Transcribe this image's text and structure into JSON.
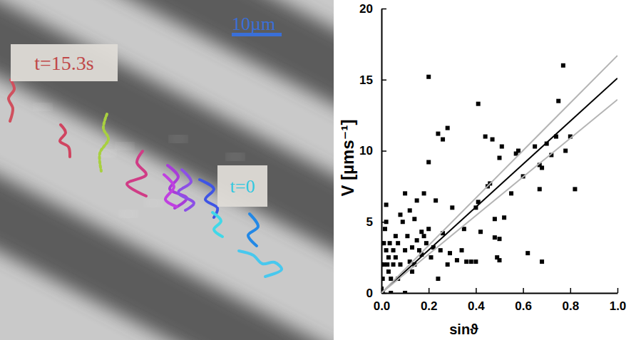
{
  "image": {
    "time_labels": [
      "t=15.3s",
      "t=0"
    ],
    "scale_bar": "10µm"
  },
  "chart_data": {
    "type": "scatter",
    "x_label": "sinϑ",
    "y_label": "V [µms⁻¹]",
    "xlim": [
      0,
      1
    ],
    "ylim": [
      0,
      20
    ],
    "xticks": [
      {
        "value": 0,
        "label": "0.0"
      },
      {
        "value": 0.2,
        "label": "0.2"
      },
      {
        "value": 0.4,
        "label": "0.4"
      },
      {
        "value": 0.6,
        "label": "0.6"
      },
      {
        "value": 0.8,
        "label": "0.8"
      },
      {
        "value": 1,
        "label": "1.0"
      }
    ],
    "yticks": [
      0,
      5,
      10,
      15,
      20
    ],
    "series": [
      {
        "type": "scatter",
        "color": "#000000",
        "marker": "square",
        "x": [
          0.0,
          0.0,
          0.0,
          0.005,
          0.005,
          0.01,
          0.01,
          0.015,
          0.02,
          0.02,
          0.02,
          0.025,
          0.03,
          0.03,
          0.035,
          0.04,
          0.04,
          0.05,
          0.05,
          0.06,
          0.06,
          0.07,
          0.07,
          0.08,
          0.08,
          0.09,
          0.1,
          0.1,
          0.1,
          0.11,
          0.12,
          0.12,
          0.13,
          0.13,
          0.14,
          0.14,
          0.15,
          0.15,
          0.16,
          0.17,
          0.17,
          0.18,
          0.18,
          0.19,
          0.2,
          0.2,
          0.2,
          0.21,
          0.22,
          0.23,
          0.24,
          0.24,
          0.25,
          0.26,
          0.26,
          0.28,
          0.28,
          0.29,
          0.3,
          0.32,
          0.34,
          0.35,
          0.36,
          0.38,
          0.4,
          0.4,
          0.41,
          0.41,
          0.42,
          0.44,
          0.45,
          0.46,
          0.47,
          0.48,
          0.48,
          0.49,
          0.5,
          0.5,
          0.5,
          0.51,
          0.52,
          0.55,
          0.57,
          0.58,
          0.6,
          0.62,
          0.65,
          0.67,
          0.67,
          0.68,
          0.68,
          0.7,
          0.72,
          0.74,
          0.75,
          0.77,
          0.78,
          0.8,
          0.82
        ],
        "values": [
          0.3,
          2,
          3.5,
          1,
          0,
          2,
          3.5,
          4.5,
          5,
          6.2,
          3,
          2,
          1.5,
          2.5,
          3.5,
          0,
          1,
          2,
          3,
          2.5,
          4,
          3.5,
          1,
          2,
          5.5,
          5,
          7,
          0,
          3,
          4,
          2.2,
          5.8,
          1.5,
          3.2,
          2,
          5.2,
          3.7,
          6.5,
          3,
          2.7,
          4.3,
          4,
          7,
          3.5,
          9.2,
          15.2,
          4.5,
          2.5,
          3.2,
          6.5,
          1,
          11.2,
          3,
          10.8,
          4.2,
          2,
          11.6,
          2.8,
          6,
          2.3,
          3,
          4.5,
          2.2,
          2.2,
          2.2,
          6,
          13.3,
          6.4,
          4.3,
          11,
          7.5,
          7.7,
          10.8,
          3.9,
          5.2,
          2.5,
          3.8,
          9.5,
          2.3,
          10.3,
          5.3,
          7,
          9.8,
          10,
          8.2,
          2.8,
          10.3,
          7.3,
          9,
          8.8,
          2.2,
          10.5,
          9.7,
          11,
          13.5,
          16,
          10,
          11,
          7.3
        ]
      },
      {
        "type": "line",
        "color": "#000000",
        "x": [
          0,
          1
        ],
        "values": [
          0,
          15.1
        ]
      },
      {
        "type": "line",
        "color": "#b4b4b4",
        "x": [
          0,
          1
        ],
        "values": [
          0,
          16.7
        ]
      },
      {
        "type": "line",
        "color": "#b4b4b4",
        "x": [
          0,
          1
        ],
        "values": [
          0,
          13.6
        ]
      }
    ]
  }
}
